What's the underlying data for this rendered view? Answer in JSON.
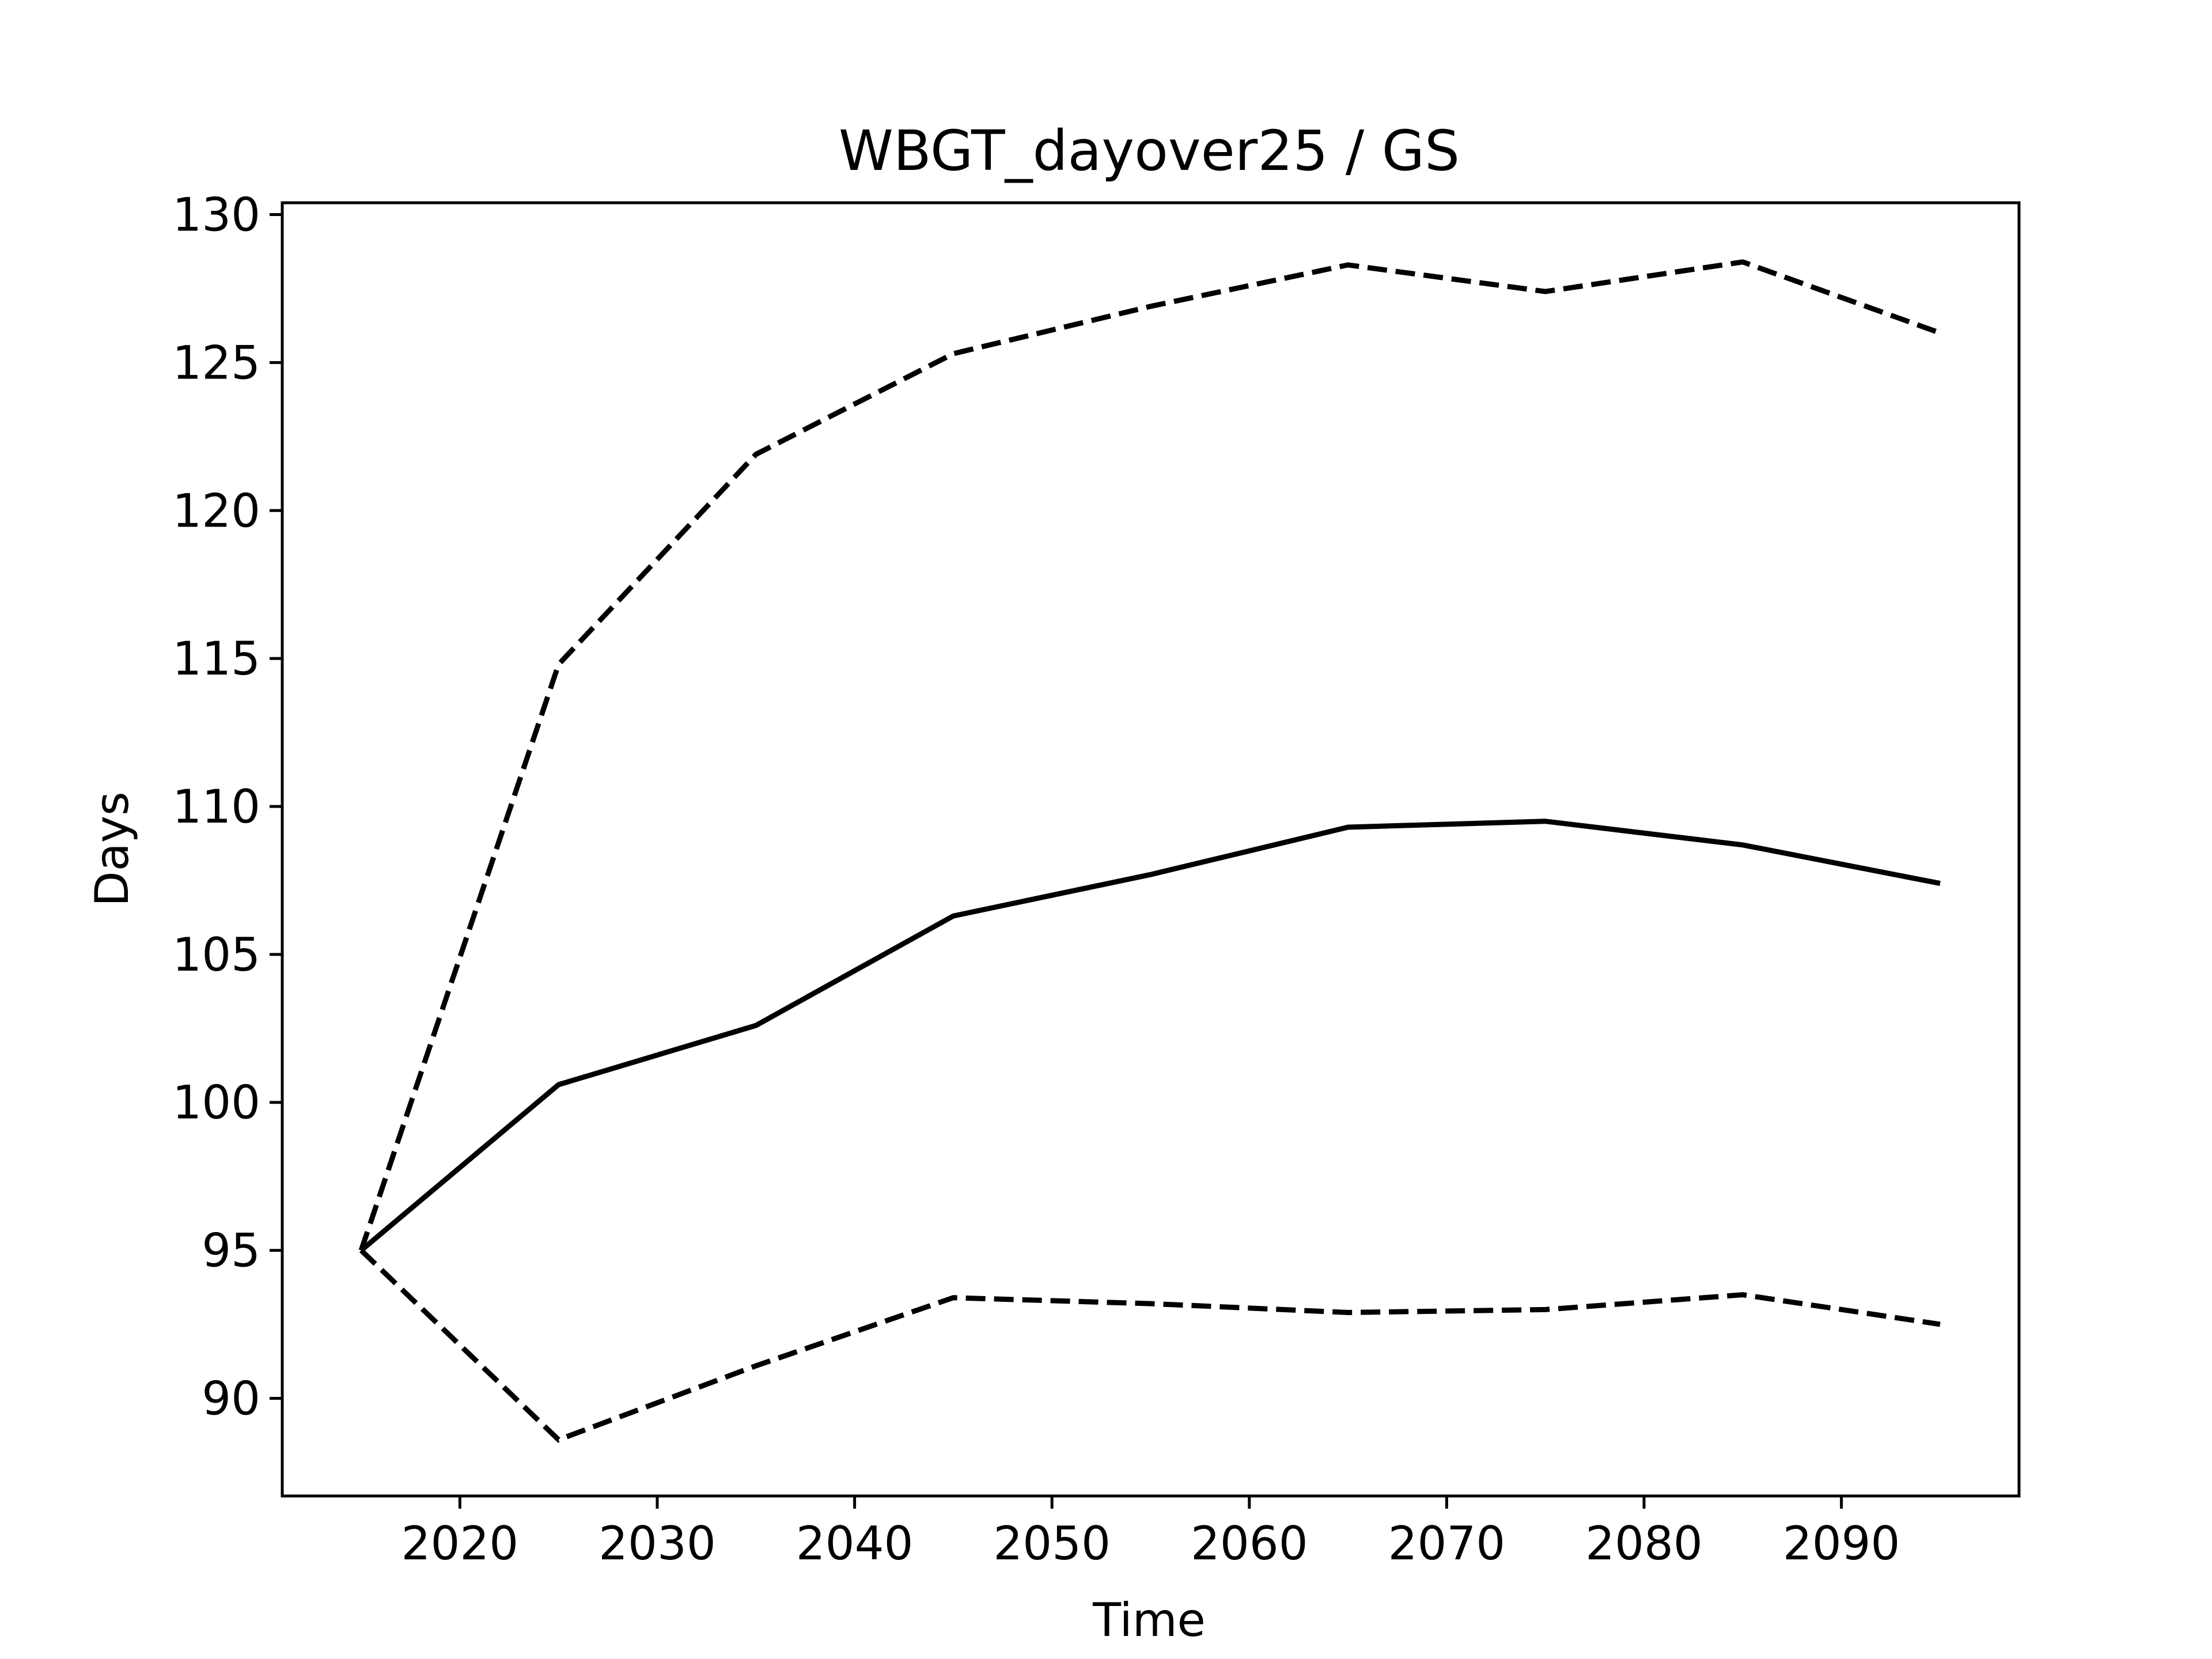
{
  "chart_data": {
    "type": "line",
    "title": "WBGT_dayover25 / GS",
    "xlabel": "Time",
    "ylabel": "Days",
    "xlim": [
      2011,
      2099
    ],
    "ylim": [
      86.7,
      130.4
    ],
    "xticks": [
      2020,
      2030,
      2040,
      2050,
      2060,
      2070,
      2080,
      2090
    ],
    "yticks": [
      90,
      95,
      100,
      105,
      110,
      115,
      120,
      125,
      130
    ],
    "grid": false,
    "legend": false,
    "x": [
      2015,
      2025,
      2035,
      2045,
      2055,
      2065,
      2075,
      2085,
      2095
    ],
    "series": [
      {
        "style": "solid",
        "color": "#000000",
        "values": [
          95.0,
          100.6,
          102.6,
          106.3,
          107.7,
          109.3,
          109.5,
          108.7,
          107.4
        ]
      },
      {
        "style": "dashed",
        "color": "#000000",
        "values": [
          95.0,
          114.8,
          121.9,
          125.3,
          126.9,
          128.3,
          127.4,
          128.4,
          126.0
        ]
      },
      {
        "style": "dashed",
        "color": "#000000",
        "values": [
          95.0,
          88.6,
          91.1,
          93.4,
          93.2,
          92.9,
          93.0,
          93.5,
          92.5
        ]
      }
    ]
  }
}
